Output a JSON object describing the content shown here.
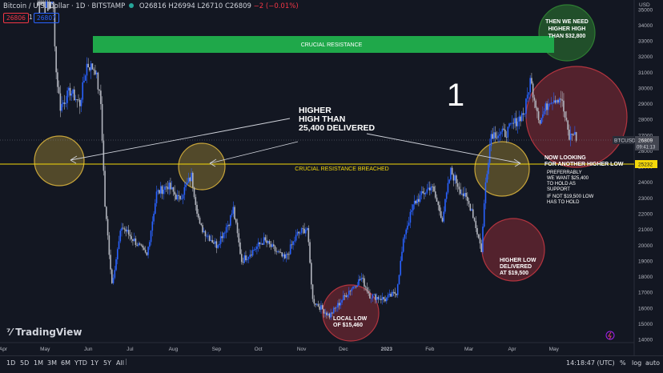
{
  "header": {
    "symbol": "Bitcoin / U.S. Dollar · 1D · BITSTAMP",
    "ohlc": "O26816 H26994 L26710 C26809",
    "change": "−2 (−0.01%)",
    "sell_price": "26806",
    "spread": "1",
    "buy_price": "26807"
  },
  "axis": {
    "currency": "USD"
  },
  "chart_data": {
    "type": "candlestick",
    "y_ticks": [
      14000,
      15000,
      16000,
      17000,
      18000,
      19000,
      20000,
      21000,
      22000,
      23000,
      24000,
      25000,
      26000,
      27000,
      28000,
      29000,
      30000,
      31000,
      32000,
      33000,
      34000,
      35000
    ],
    "x_ticks": [
      "Apr",
      "May",
      "Jun",
      "Jul",
      "Aug",
      "Sep",
      "Oct",
      "Nov",
      "Dec",
      "2023",
      "Feb",
      "Mar",
      "Apr",
      "May"
    ],
    "ylim": [
      13800,
      35600
    ],
    "price_path": [
      [
        "2022-04-25",
        39000
      ],
      [
        "2022-05-07",
        35000
      ],
      [
        "2022-05-09",
        31000
      ],
      [
        "2022-05-12",
        28800
      ],
      [
        "2022-05-19",
        29800
      ],
      [
        "2022-05-26",
        29000
      ],
      [
        "2022-05-31",
        31500
      ],
      [
        "2022-06-06",
        31200
      ],
      [
        "2022-06-10",
        29000
      ],
      [
        "2022-06-13",
        22500
      ],
      [
        "2022-06-18",
        17600
      ],
      [
        "2022-06-25",
        21200
      ],
      [
        "2022-07-05",
        20200
      ],
      [
        "2022-07-13",
        19300
      ],
      [
        "2022-07-20",
        23300
      ],
      [
        "2022-07-28",
        23800
      ],
      [
        "2022-08-05",
        22900
      ],
      [
        "2022-08-14",
        24400
      ],
      [
        "2022-08-20",
        21200
      ],
      [
        "2022-09-01",
        20000
      ],
      [
        "2022-09-10",
        21500
      ],
      [
        "2022-09-13",
        22300
      ],
      [
        "2022-09-19",
        19000
      ],
      [
        "2022-10-05",
        20300
      ],
      [
        "2022-10-20",
        19100
      ],
      [
        "2022-10-29",
        20700
      ],
      [
        "2022-11-05",
        21100
      ],
      [
        "2022-11-09",
        16500
      ],
      [
        "2022-11-21",
        15500
      ],
      [
        "2022-12-05",
        17100
      ],
      [
        "2022-12-14",
        17900
      ],
      [
        "2022-12-20",
        16800
      ],
      [
        "2022-12-31",
        16550
      ],
      [
        "2023-01-08",
        17000
      ],
      [
        "2023-01-14",
        20800
      ],
      [
        "2023-01-21",
        22700
      ],
      [
        "2023-02-02",
        23800
      ],
      [
        "2023-02-10",
        21700
      ],
      [
        "2023-02-16",
        24700
      ],
      [
        "2023-02-25",
        23200
      ],
      [
        "2023-03-03",
        22300
      ],
      [
        "2023-03-10",
        19700
      ],
      [
        "2023-03-13",
        24000
      ],
      [
        "2023-03-17",
        27100
      ],
      [
        "2023-03-27",
        27100
      ],
      [
        "2023-04-10",
        28500
      ],
      [
        "2023-04-14",
        30500
      ],
      [
        "2023-04-21",
        27900
      ],
      [
        "2023-04-28",
        29300
      ],
      [
        "2023-05-06",
        29400
      ],
      [
        "2023-05-12",
        26800
      ],
      [
        "2023-05-15",
        27200
      ],
      [
        "2023-05-17",
        26809
      ]
    ],
    "crucial_resistance_zone": [
      32700,
      33800
    ],
    "breached_level": 25232,
    "last_price": 26809
  },
  "price_labels": {
    "btc_name": "BTCUSD",
    "btc_price": "26809",
    "countdown": "09:41:13",
    "level": "25232"
  },
  "annotations": {
    "crucial_resistance": "CRUCIAL RESISTANCE",
    "breached": "CRUCIAL RESISTANCE BREACHED",
    "higher_high": [
      "HIGHER",
      "HIGH THAN",
      "25,400 DELIVERED"
    ],
    "big_number": "1",
    "then_need": [
      "THEN WE NEED",
      "HIGHER HIGH",
      "THAN $32,800"
    ],
    "now_looking": [
      "NOW LOOKING",
      "FOR ANOTHER HIGHER LOW"
    ],
    "preferably": [
      "PREFERRABLY",
      "WE WANT $25,400",
      "TO HOLD AS",
      "SUPPORT"
    ],
    "if_not": [
      "IF NOT $19,500 LOW",
      "HAS TO HOLD"
    ],
    "higher_low": [
      "HIGHER LOW",
      "DELIVERED",
      "AT $19,500"
    ],
    "local_low": [
      "LOCAL LOW",
      "OF $15,460"
    ]
  },
  "brand": "TradingView",
  "bottom_bar": {
    "ranges": [
      "1D",
      "5D",
      "1M",
      "3M",
      "6M",
      "YTD",
      "1Y",
      "5Y",
      "All"
    ],
    "time": "14:18:47 (UTC)",
    "pct": "%",
    "log": "log",
    "auto": "auto"
  },
  "colors": {
    "background": "#131722",
    "candle_up": "#2962ff",
    "candle_down": "#b2b5be",
    "resistance_green": "#1fa84a",
    "level_yellow": "#f5d90a",
    "circle_yellow": "#c8a53a",
    "circle_red": "#b3343f",
    "circle_green": "#2e7d32"
  }
}
